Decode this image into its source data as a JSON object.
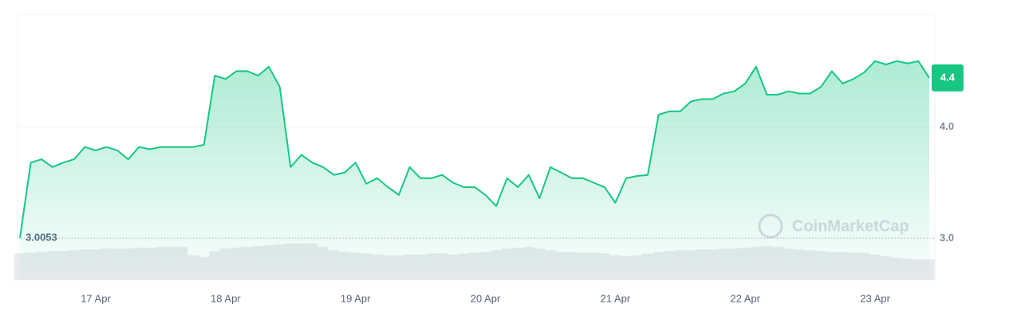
{
  "chart_data": {
    "type": "line",
    "color": "#16c784",
    "categories": [
      "",
      null,
      null,
      null,
      null,
      null,
      null,
      "17 Apr",
      null,
      null,
      null,
      null,
      null,
      null,
      null,
      null,
      null,
      null,
      null,
      "18 Apr",
      null,
      null,
      null,
      null,
      null,
      null,
      null,
      null,
      null,
      null,
      null,
      "19 Apr",
      null,
      null,
      null,
      null,
      null,
      null,
      null,
      null,
      null,
      null,
      null,
      "20 Apr",
      null,
      null,
      null,
      null,
      null,
      null,
      null,
      null,
      null,
      null,
      null,
      "21 Apr",
      null,
      null,
      null,
      null,
      null,
      null,
      null,
      null,
      null,
      null,
      null,
      "22 Apr",
      null,
      null,
      null,
      null,
      null,
      null,
      null,
      null,
      null,
      null,
      null,
      "23 Apr",
      null,
      null,
      null,
      null,
      null
    ],
    "values": [
      3.0053,
      3.68,
      3.71,
      3.64,
      3.68,
      3.71,
      3.82,
      3.79,
      3.82,
      3.79,
      3.71,
      3.82,
      3.8,
      3.82,
      3.82,
      3.82,
      3.82,
      3.84,
      4.46,
      4.43,
      4.5,
      4.5,
      4.46,
      4.54,
      4.36,
      3.64,
      3.75,
      3.68,
      3.64,
      3.57,
      3.59,
      3.68,
      3.49,
      3.54,
      3.46,
      3.39,
      3.64,
      3.54,
      3.54,
      3.57,
      3.5,
      3.46,
      3.46,
      3.39,
      3.29,
      3.54,
      3.46,
      3.57,
      3.36,
      3.64,
      3.59,
      3.54,
      3.54,
      3.5,
      3.46,
      3.32,
      3.54,
      3.56,
      3.57,
      4.11,
      4.14,
      4.14,
      4.23,
      4.25,
      4.25,
      4.3,
      4.32,
      4.39,
      4.54,
      4.29,
      4.29,
      4.32,
      4.3,
      4.3,
      4.36,
      4.5,
      4.39,
      4.43,
      4.49,
      4.59,
      4.56,
      4.59,
      4.57,
      4.59,
      4.44
    ],
    "volume": [
      32,
      33,
      34,
      35,
      35,
      36,
      37,
      37,
      38,
      38,
      38,
      39,
      39,
      40,
      40,
      40,
      30,
      28,
      35,
      38,
      39,
      40,
      41,
      42,
      43,
      44,
      44,
      44,
      40,
      36,
      34,
      33,
      32,
      31,
      30,
      30,
      31,
      31,
      32,
      32,
      31,
      32,
      33,
      34,
      36,
      38,
      39,
      40,
      38,
      36,
      34,
      34,
      33,
      33,
      32,
      30,
      29,
      30,
      32,
      34,
      35,
      36,
      36,
      37,
      37,
      38,
      38,
      39,
      40,
      41,
      40,
      38,
      37,
      36,
      35,
      34,
      34,
      33,
      33,
      31,
      29,
      27,
      26,
      25,
      25
    ],
    "price_tag": {
      "value": 4.44,
      "label": "4.4"
    },
    "ylim": [
      2.64,
      5.01
    ],
    "yticks": [
      {
        "value": 3,
        "label": "3.0"
      },
      {
        "value": 4,
        "label": "4.0"
      }
    ],
    "grid": true,
    "watermark": "CoinMarketCap"
  }
}
